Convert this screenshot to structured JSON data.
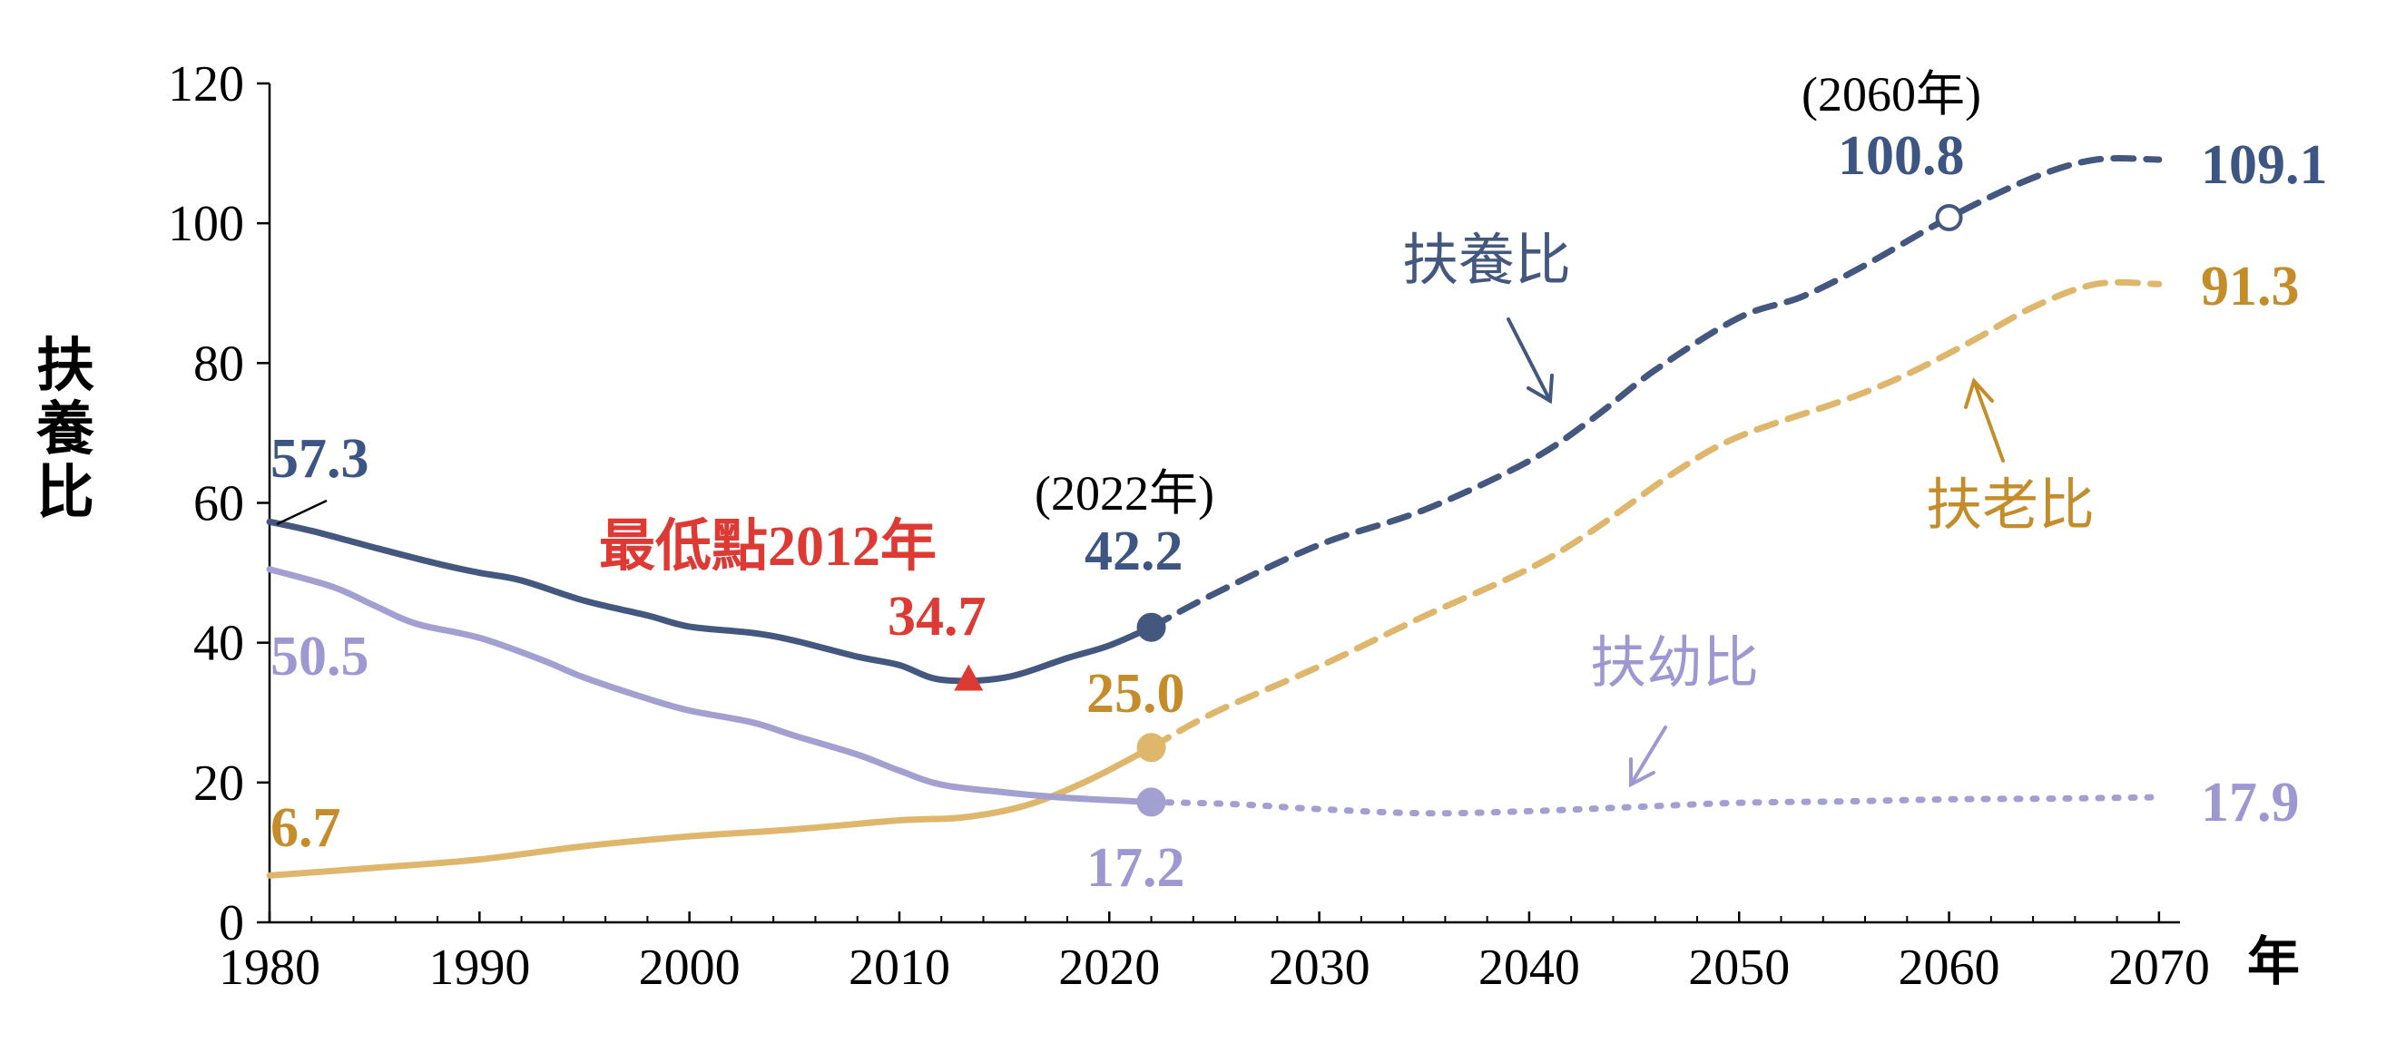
{
  "chart_data": {
    "type": "line",
    "ylabel": "扶養比",
    "xlabel": "年",
    "xlim": [
      1980,
      2071
    ],
    "ylim": [
      0,
      120
    ],
    "x_ticks": [
      "1980",
      "1990",
      "2000",
      "2010",
      "2020",
      "2030",
      "2040",
      "2050",
      "2060",
      "2070"
    ],
    "y_ticks": [
      "0",
      "20",
      "40",
      "60",
      "80",
      "100",
      "120"
    ],
    "grid": false,
    "colors": {
      "dependency": "#44587f",
      "elderly": "#deb76c",
      "youth": "#a29fd1",
      "annotation_red": "#dd3a33",
      "label_blue": "#3c5582",
      "label_gold": "#c58c2a",
      "label_purple": "#9d98d2"
    },
    "series": [
      {
        "name": "扶養比",
        "key": "dependency",
        "actual": [
          [
            1980,
            57.3
          ],
          [
            1982,
            56.0
          ],
          [
            1985,
            53.6
          ],
          [
            1988,
            51.3
          ],
          [
            1990,
            50.0
          ],
          [
            1992,
            48.9
          ],
          [
            1995,
            46.0
          ],
          [
            1998,
            43.9
          ],
          [
            2000,
            42.3
          ],
          [
            2003,
            41.4
          ],
          [
            2005,
            40.3
          ],
          [
            2008,
            38.0
          ],
          [
            2010,
            36.8
          ],
          [
            2012,
            34.7
          ],
          [
            2015,
            35.0
          ],
          [
            2018,
            37.8
          ],
          [
            2020,
            39.6
          ],
          [
            2022,
            42.2
          ]
        ],
        "projected": [
          [
            2022,
            42.2
          ],
          [
            2025,
            47.0
          ],
          [
            2030,
            54.0
          ],
          [
            2035,
            59.0
          ],
          [
            2040,
            66.0
          ],
          [
            2043,
            72.0
          ],
          [
            2046,
            79.0
          ],
          [
            2050,
            86.5
          ],
          [
            2053,
            89.5
          ],
          [
            2056,
            94.0
          ],
          [
            2060,
            100.8
          ],
          [
            2064,
            106.5
          ],
          [
            2067,
            109.1
          ],
          [
            2070,
            109.1
          ]
        ]
      },
      {
        "name": "扶老比",
        "key": "elderly",
        "actual": [
          [
            1980,
            6.7
          ],
          [
            1985,
            7.8
          ],
          [
            1990,
            9.0
          ],
          [
            1995,
            10.9
          ],
          [
            2000,
            12.3
          ],
          [
            2005,
            13.3
          ],
          [
            2010,
            14.6
          ],
          [
            2013,
            15.0
          ],
          [
            2016,
            16.7
          ],
          [
            2019,
            20.3
          ],
          [
            2022,
            25.0
          ]
        ],
        "projected": [
          [
            2022,
            25.0
          ],
          [
            2025,
            30.0
          ],
          [
            2030,
            36.6
          ],
          [
            2035,
            43.8
          ],
          [
            2040,
            50.6
          ],
          [
            2043,
            56.0
          ],
          [
            2047,
            64.5
          ],
          [
            2050,
            69.5
          ],
          [
            2055,
            74.7
          ],
          [
            2058,
            78.4
          ],
          [
            2061,
            83.0
          ],
          [
            2064,
            88.0
          ],
          [
            2067,
            91.3
          ],
          [
            2070,
            91.3
          ]
        ]
      },
      {
        "name": "扶幼比",
        "key": "youth",
        "actual": [
          [
            1980,
            50.5
          ],
          [
            1983,
            48.0
          ],
          [
            1985,
            45.3
          ],
          [
            1987,
            42.7
          ],
          [
            1990,
            40.7
          ],
          [
            1993,
            37.5
          ],
          [
            1995,
            35.0
          ],
          [
            1998,
            32.0
          ],
          [
            2000,
            30.3
          ],
          [
            2003,
            28.6
          ],
          [
            2005,
            26.7
          ],
          [
            2008,
            24.0
          ],
          [
            2010,
            21.7
          ],
          [
            2012,
            19.7
          ],
          [
            2015,
            18.6
          ],
          [
            2018,
            17.8
          ],
          [
            2022,
            17.2
          ]
        ],
        "projected": [
          [
            2022,
            17.2
          ],
          [
            2026,
            16.9
          ],
          [
            2030,
            16.2
          ],
          [
            2035,
            15.6
          ],
          [
            2040,
            15.9
          ],
          [
            2045,
            16.5
          ],
          [
            2050,
            17.1
          ],
          [
            2055,
            17.3
          ],
          [
            2060,
            17.6
          ],
          [
            2065,
            17.7
          ],
          [
            2070,
            17.9
          ]
        ]
      }
    ],
    "markers": [
      {
        "key": "dependency",
        "x": 2022,
        "y": 42.2,
        "shape": "filled-circle"
      },
      {
        "key": "elderly",
        "x": 2022,
        "y": 25.0,
        "shape": "filled-circle"
      },
      {
        "key": "youth",
        "x": 2022,
        "y": 17.2,
        "shape": "filled-circle"
      },
      {
        "key": "dependency",
        "x": 2060,
        "y": 100.8,
        "shape": "open-circle"
      },
      {
        "key": "annotation_red",
        "x": 2013.3,
        "y": 34.7,
        "shape": "triangle"
      }
    ],
    "annotations": {
      "start_dependency": "57.3",
      "start_youth": "50.5",
      "start_elderly": "6.7",
      "lowest_title": "最低點2012年",
      "lowest_value": "34.7",
      "year_2022": "(2022年)",
      "value_2022_dependency": "42.2",
      "value_2022_elderly": "25.0",
      "value_2022_youth": "17.2",
      "year_2060": "(2060年)",
      "value_2060_dependency": "100.8",
      "end_dependency": "109.1",
      "end_elderly": "91.3",
      "end_youth": "17.9",
      "name_dependency": "扶養比",
      "name_elderly": "扶老比",
      "name_youth": "扶幼比"
    }
  }
}
